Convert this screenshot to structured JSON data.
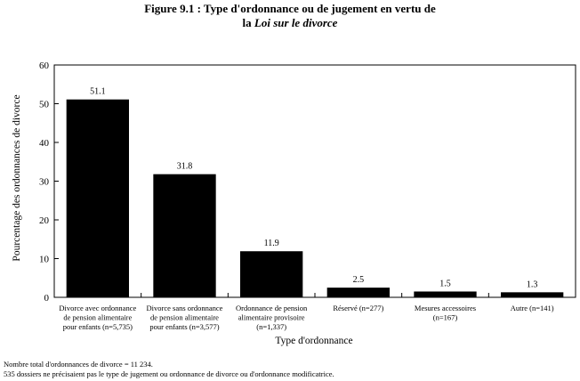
{
  "figure": {
    "title_line1": "Figure 9.1 : Type d'ordonnance ou de jugement en vertu de",
    "title_line2_prefix": "la ",
    "title_line2_italic": "Loi sur le divorce"
  },
  "chart_data": {
    "type": "bar",
    "xlabel": "Type d'ordonnance",
    "ylabel": "Pourcentage des ordonnances de divorce",
    "ylim": [
      0,
      60
    ],
    "yticks": [
      0,
      10,
      20,
      30,
      40,
      50,
      60
    ],
    "grid": false,
    "bar_color": "#000000",
    "categories": [
      [
        "Divorce avec ordonnance",
        "de pension alimentaire",
        "pour enfants (n=5,735)"
      ],
      [
        "Divorce sans ordonnance",
        "de pension alimentaire",
        "pour enfants (n=3,577)"
      ],
      [
        "Ordonnance de pension",
        "alimentaire provisoire",
        "(n=1,337)"
      ],
      [
        "Réservé (n=277)"
      ],
      [
        "Mesures accessoires",
        "(n=167)"
      ],
      [
        "Autre (n=141)"
      ]
    ],
    "values": [
      51.1,
      31.8,
      11.9,
      2.5,
      1.5,
      1.3
    ],
    "value_labels": [
      "51.1",
      "31.8",
      "11.9",
      "2.5",
      "1.5",
      "1.3"
    ]
  },
  "footnotes": [
    "Nombre total d'ordonnances de divorce = 11 234.",
    "535 dossiers ne précisaient pas le type de jugement ou ordonnance de divorce ou d'ordonnance modificatrice."
  ]
}
